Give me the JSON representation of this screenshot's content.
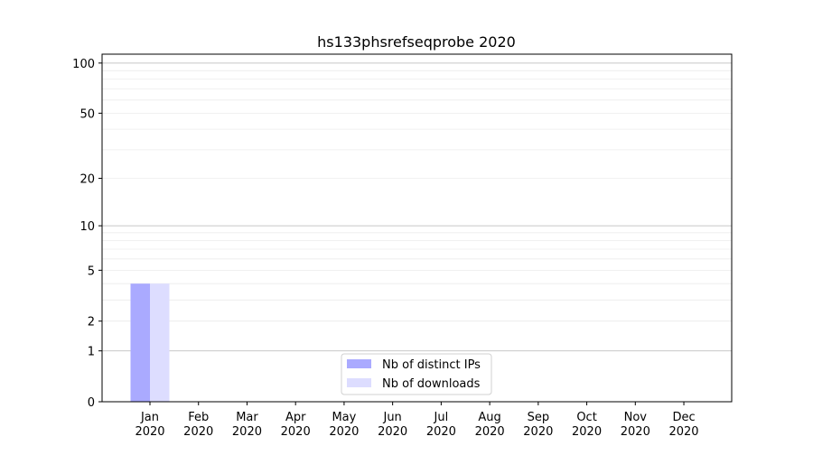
{
  "chart_data": {
    "type": "bar",
    "title": "hs133phsrefseqprobe 2020",
    "xlabel": "",
    "ylabel": "",
    "yscale": "log(1+y)",
    "ylim": [
      0,
      113
    ],
    "yticks": [
      0,
      1,
      2,
      5,
      10,
      20,
      50,
      100
    ],
    "grid": true,
    "legend_position": "lower-center",
    "categories": [
      [
        "Jan",
        "2020"
      ],
      [
        "Feb",
        "2020"
      ],
      [
        "Mar",
        "2020"
      ],
      [
        "Apr",
        "2020"
      ],
      [
        "May",
        "2020"
      ],
      [
        "Jun",
        "2020"
      ],
      [
        "Jul",
        "2020"
      ],
      [
        "Aug",
        "2020"
      ],
      [
        "Sep",
        "2020"
      ],
      [
        "Oct",
        "2020"
      ],
      [
        "Nov",
        "2020"
      ],
      [
        "Dec",
        "2020"
      ]
    ],
    "series": [
      {
        "name": "Nb of distinct IPs",
        "color": "#aaaaff",
        "values": [
          4,
          0,
          0,
          0,
          0,
          0,
          0,
          0,
          0,
          0,
          0,
          0
        ]
      },
      {
        "name": "Nb of downloads",
        "color": "#ddddff",
        "values": [
          4,
          0,
          0,
          0,
          0,
          0,
          0,
          0,
          0,
          0,
          0,
          0
        ]
      }
    ]
  }
}
